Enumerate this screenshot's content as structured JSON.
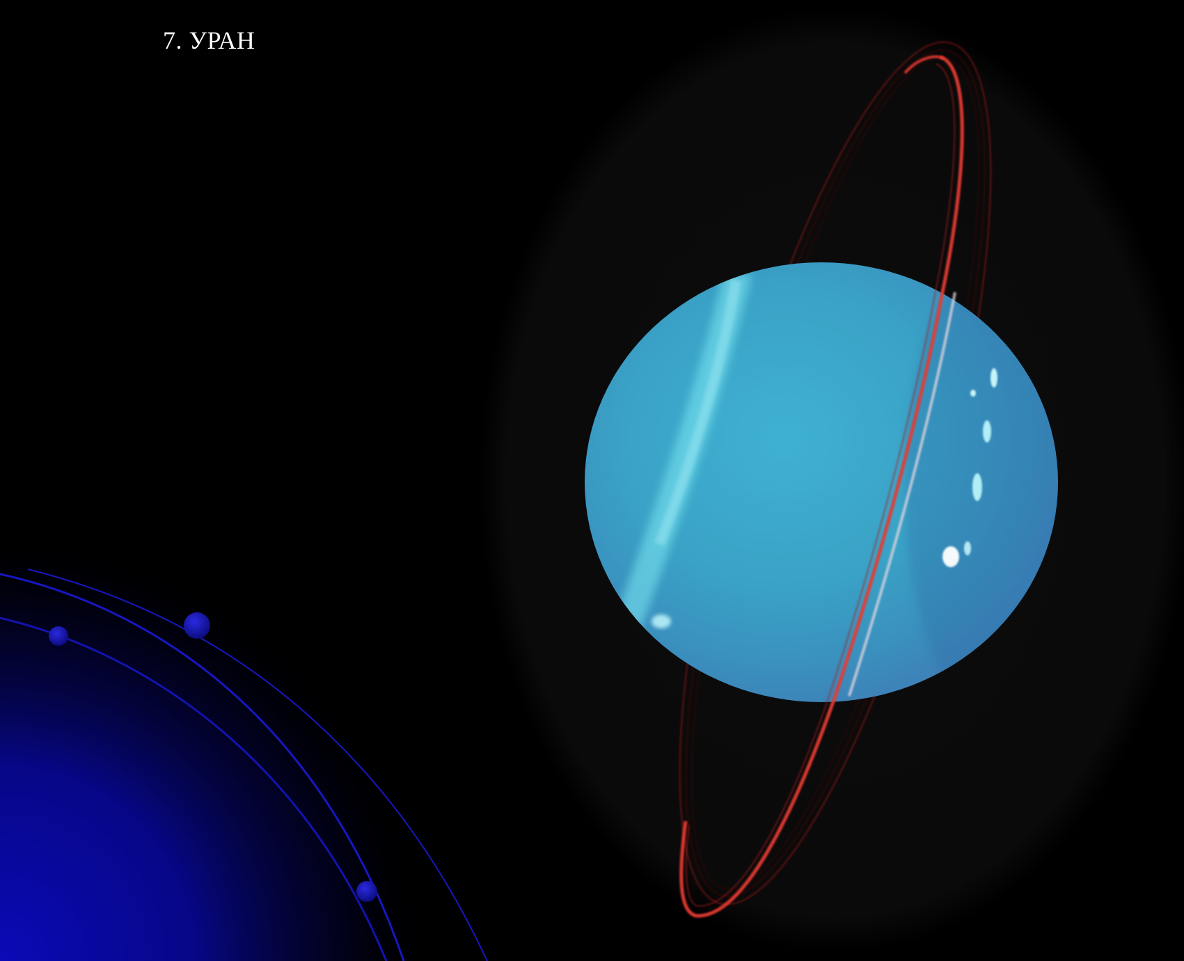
{
  "slide": {
    "title": "7. УРАН"
  },
  "colors": {
    "background": "#000000",
    "title_text": "#ffffff",
    "corner_glow": "#0a0ab8",
    "orbit_line": "#1a1ad6",
    "planet_body": "#3aa6c9",
    "ring": "#e0302a"
  },
  "images": {
    "main": "uranus-with-rings-photo",
    "decoration": "blue-orbit-arcs-corner"
  }
}
